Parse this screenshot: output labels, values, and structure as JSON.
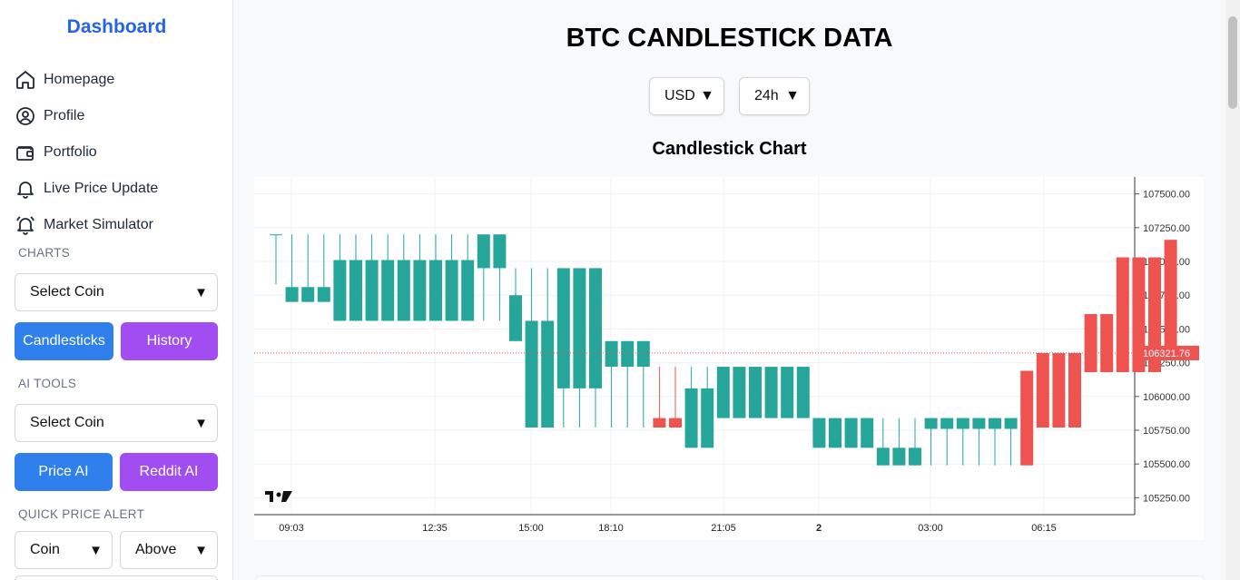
{
  "sidebar": {
    "brand": "Dashboard",
    "nav": [
      {
        "label": "Homepage",
        "icon": "home-icon"
      },
      {
        "label": "Profile",
        "icon": "user-circle-icon"
      },
      {
        "label": "Portfolio",
        "icon": "wallet-icon"
      },
      {
        "label": "Live Price Update",
        "icon": "bell-icon"
      },
      {
        "label": "Market Simulator",
        "icon": "bell-ring-icon"
      }
    ],
    "charts": {
      "label": "CHARTS",
      "select": "Select Coin",
      "btn_candles": "Candlesticks",
      "btn_history": "History"
    },
    "ai": {
      "label": "AI TOOLS",
      "select": "Select Coin",
      "btn_price": "Price AI",
      "btn_reddit": "Reddit AI"
    },
    "alert": {
      "label": "QUICK PRICE ALERT",
      "coin": "Coin",
      "direction": "Above"
    }
  },
  "main": {
    "title": "BTC CANDLESTICK DATA",
    "currency": "USD",
    "range": "24h",
    "chart_title": "Candlestick Chart"
  },
  "colors": {
    "up": "#26a69a",
    "down": "#ef5350",
    "accent": "#2563eb",
    "purple": "#a24df2",
    "blue": "#2f80ed"
  },
  "chart_data": {
    "type": "candlestick",
    "ylim": [
      105125,
      107625
    ],
    "yticks": [
      107500,
      107250,
      107000,
      106750,
      106500,
      106250,
      106000,
      105750,
      105500,
      105250
    ],
    "xticks": [
      "09:03",
      "12:35",
      "15:00",
      "18:10",
      "21:05",
      "2",
      "03:00",
      "06:15"
    ],
    "last_price": "106321.76",
    "candles": [
      {
        "o": 107200,
        "h": 107200,
        "l": 106830,
        "c": 107200
      },
      {
        "o": 106700,
        "h": 107200,
        "l": 106700,
        "c": 106810
      },
      {
        "o": 106700,
        "h": 107200,
        "l": 106700,
        "c": 106810
      },
      {
        "o": 106700,
        "h": 107200,
        "l": 106700,
        "c": 106810
      },
      {
        "o": 106560,
        "h": 107200,
        "l": 106560,
        "c": 107010
      },
      {
        "o": 106560,
        "h": 107200,
        "l": 106560,
        "c": 107010
      },
      {
        "o": 106560,
        "h": 107200,
        "l": 106560,
        "c": 107010
      },
      {
        "o": 106560,
        "h": 107200,
        "l": 106560,
        "c": 107010
      },
      {
        "o": 106560,
        "h": 107200,
        "l": 106560,
        "c": 107010
      },
      {
        "o": 106560,
        "h": 107200,
        "l": 106560,
        "c": 107010
      },
      {
        "o": 106560,
        "h": 107200,
        "l": 106560,
        "c": 107010
      },
      {
        "o": 106560,
        "h": 107200,
        "l": 106560,
        "c": 107010
      },
      {
        "o": 106560,
        "h": 107200,
        "l": 106560,
        "c": 107010
      },
      {
        "o": 106950,
        "h": 107200,
        "l": 106560,
        "c": 107200
      },
      {
        "o": 106950,
        "h": 107200,
        "l": 106560,
        "c": 107200
      },
      {
        "o": 106410,
        "h": 106950,
        "l": 106410,
        "c": 106750
      },
      {
        "o": 105770,
        "h": 106950,
        "l": 105770,
        "c": 106560
      },
      {
        "o": 105770,
        "h": 106950,
        "l": 105770,
        "c": 106560
      },
      {
        "o": 106060,
        "h": 106950,
        "l": 105770,
        "c": 106950
      },
      {
        "o": 106060,
        "h": 106950,
        "l": 105770,
        "c": 106950
      },
      {
        "o": 106060,
        "h": 106950,
        "l": 105770,
        "c": 106950
      },
      {
        "o": 106220,
        "h": 106410,
        "l": 105770,
        "c": 106410
      },
      {
        "o": 106220,
        "h": 106410,
        "l": 105770,
        "c": 106410
      },
      {
        "o": 106220,
        "h": 106410,
        "l": 105770,
        "c": 106410
      },
      {
        "o": 105840,
        "h": 106220,
        "l": 105770,
        "c": 105770
      },
      {
        "o": 105840,
        "h": 106220,
        "l": 105770,
        "c": 105770
      },
      {
        "o": 105620,
        "h": 106220,
        "l": 105620,
        "c": 106060
      },
      {
        "o": 105620,
        "h": 106220,
        "l": 105620,
        "c": 106060
      },
      {
        "o": 105840,
        "h": 106220,
        "l": 105840,
        "c": 106220
      },
      {
        "o": 105840,
        "h": 106220,
        "l": 105840,
        "c": 106220
      },
      {
        "o": 105840,
        "h": 106220,
        "l": 105840,
        "c": 106220
      },
      {
        "o": 105840,
        "h": 106220,
        "l": 105840,
        "c": 106220
      },
      {
        "o": 105840,
        "h": 106220,
        "l": 105840,
        "c": 106220
      },
      {
        "o": 105840,
        "h": 106220,
        "l": 105840,
        "c": 106220
      },
      {
        "o": 105620,
        "h": 105840,
        "l": 105620,
        "c": 105840
      },
      {
        "o": 105620,
        "h": 105840,
        "l": 105620,
        "c": 105840
      },
      {
        "o": 105620,
        "h": 105840,
        "l": 105620,
        "c": 105840
      },
      {
        "o": 105620,
        "h": 105840,
        "l": 105620,
        "c": 105840
      },
      {
        "o": 105490,
        "h": 105840,
        "l": 105490,
        "c": 105620
      },
      {
        "o": 105490,
        "h": 105840,
        "l": 105490,
        "c": 105620
      },
      {
        "o": 105490,
        "h": 105840,
        "l": 105490,
        "c": 105620
      },
      {
        "o": 105760,
        "h": 105840,
        "l": 105490,
        "c": 105840
      },
      {
        "o": 105760,
        "h": 105840,
        "l": 105490,
        "c": 105840
      },
      {
        "o": 105760,
        "h": 105840,
        "l": 105490,
        "c": 105840
      },
      {
        "o": 105760,
        "h": 105840,
        "l": 105490,
        "c": 105840
      },
      {
        "o": 105760,
        "h": 105840,
        "l": 105490,
        "c": 105840
      },
      {
        "o": 105760,
        "h": 105840,
        "l": 105490,
        "c": 105840
      },
      {
        "o": 106190,
        "h": 106190,
        "l": 105490,
        "c": 105490
      },
      {
        "o": 106321,
        "h": 106321,
        "l": 105770,
        "c": 105770
      },
      {
        "o": 106321,
        "h": 106321,
        "l": 105770,
        "c": 105770
      },
      {
        "o": 106321,
        "h": 106321,
        "l": 105770,
        "c": 105770
      },
      {
        "o": 106610,
        "h": 106610,
        "l": 106180,
        "c": 106180
      },
      {
        "o": 106610,
        "h": 106610,
        "l": 106180,
        "c": 106180
      },
      {
        "o": 107030,
        "h": 107030,
        "l": 106180,
        "c": 106180
      },
      {
        "o": 107030,
        "h": 107030,
        "l": 106180,
        "c": 106180
      },
      {
        "o": 107030,
        "h": 107030,
        "l": 106180,
        "c": 106180
      },
      {
        "o": 107160,
        "h": 107160,
        "l": 106321,
        "c": 106321
      }
    ]
  }
}
